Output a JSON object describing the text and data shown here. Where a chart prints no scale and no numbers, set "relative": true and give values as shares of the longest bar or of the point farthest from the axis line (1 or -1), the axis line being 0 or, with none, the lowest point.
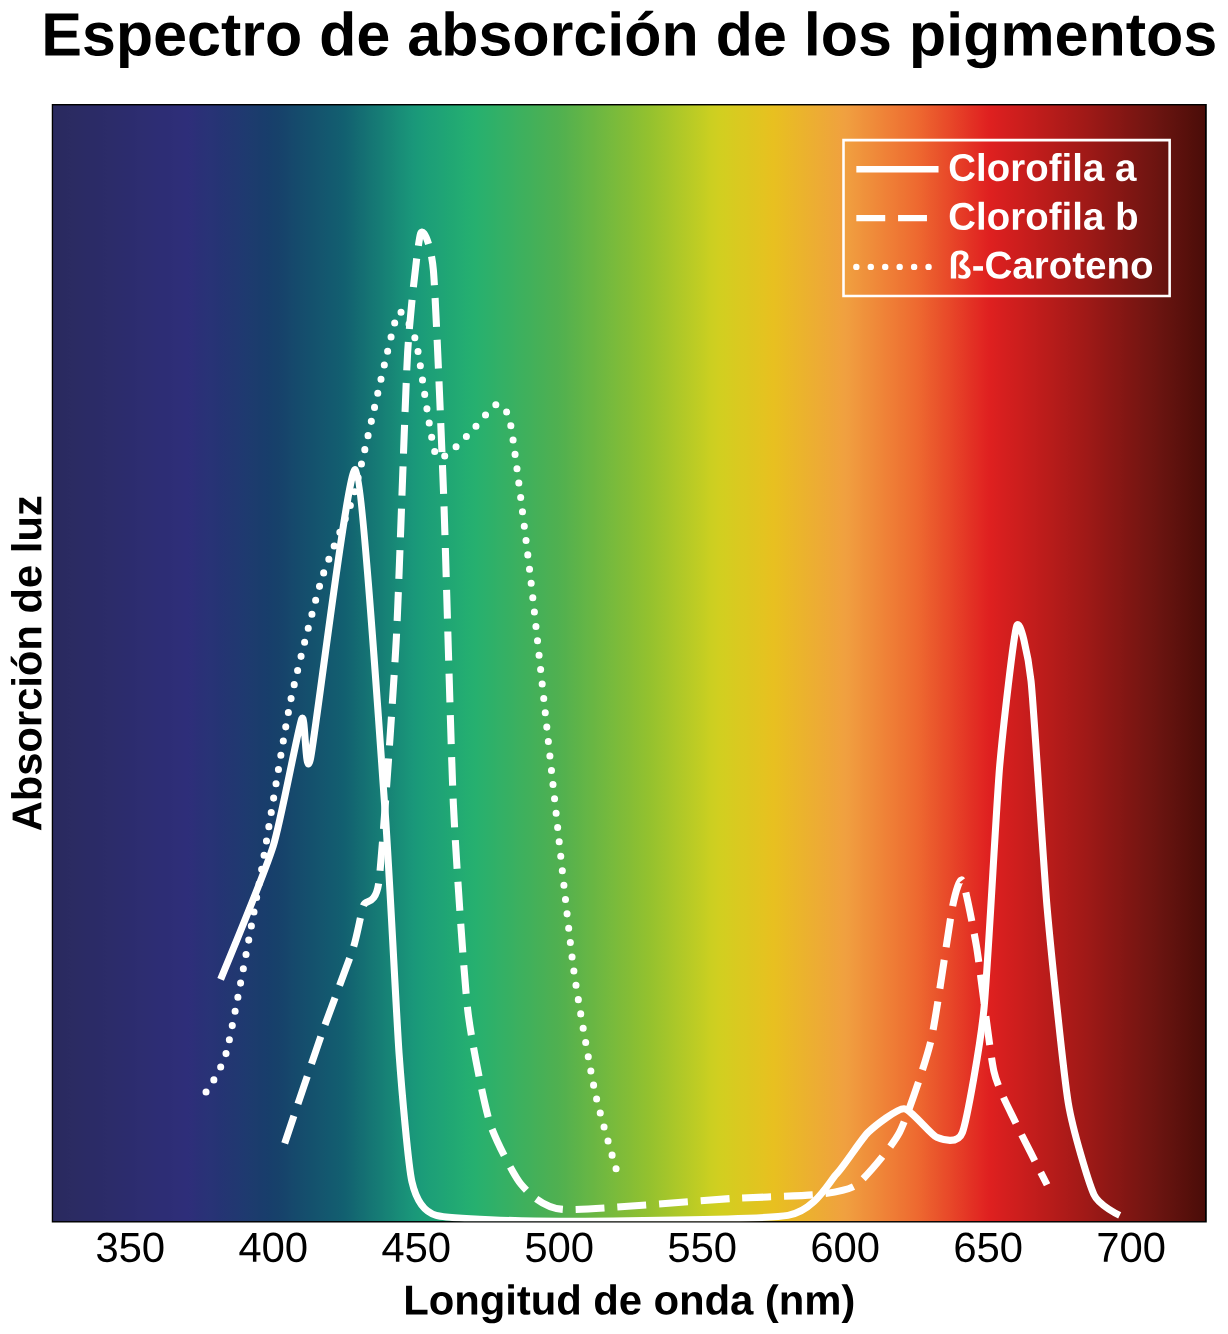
{
  "chart_data": {
    "type": "line",
    "title": "Espectro de absorción de los pigmentos",
    "xlabel": "Longitud de onda (nm)",
    "ylabel": "Absorción de luz",
    "relative": true,
    "xlim": [
      323,
      726
    ],
    "xticks": [
      350,
      400,
      450,
      500,
      550,
      600,
      650,
      700
    ],
    "legend": "top right",
    "series": [
      {
        "name": "Clorofila a",
        "color": "#ffffff",
        "line_style": "solid",
        "x": [
          381.6,
          400,
          410,
          413,
          428.7,
          439,
          444,
          448.5,
          457,
          500,
          580,
          597,
          608,
          620.6,
          632,
          641,
          648.5,
          654,
          660,
          665,
          670.6,
          678,
          687,
          696
        ],
        "values": [
          0.245,
          0.38,
          0.509,
          0.468,
          0.761,
          0.42,
          0.17,
          0.04,
          0.006,
          0.0,
          0.006,
          0.048,
          0.09,
          0.114,
          0.085,
          0.09,
          0.214,
          0.46,
          0.603,
          0.547,
          0.318,
          0.12,
          0.027,
          0.006
        ]
      },
      {
        "name": "Clorofila b",
        "color": "#ffffff",
        "line_style": "dashed",
        "x": [
          404,
          417,
          428,
          431.6,
          437,
          443,
          447,
          451.5,
          456,
          459.6,
          463,
          468,
          475.7,
          486.8,
          501.5,
          560,
          589.7,
          604,
          619,
          630,
          637.5,
          641,
          646,
          652,
          659.6,
          670.6
        ],
        "values": [
          0.079,
          0.19,
          0.277,
          0.32,
          0.345,
          0.588,
          0.88,
          1.0,
          0.963,
          0.734,
          0.422,
          0.214,
          0.1,
          0.037,
          0.012,
          0.023,
          0.027,
          0.037,
          0.09,
          0.183,
          0.318,
          0.345,
          0.277,
          0.152,
          0.1,
          0.037
        ]
      },
      {
        "name": "ß-Caroteno",
        "color": "#ffffff",
        "line_style": "dotted",
        "x": [
          376.5,
          383.8,
          394.9,
          406,
          417,
          428,
          439,
          444,
          450,
          457,
          468,
          478,
          483,
          490,
          497.8,
          505,
          512.5,
          520
        ],
        "values": [
          0.131,
          0.173,
          0.339,
          0.526,
          0.651,
          0.734,
          0.869,
          0.921,
          0.89,
          0.775,
          0.796,
          0.827,
          0.807,
          0.651,
          0.443,
          0.256,
          0.131,
          0.052
        ]
      }
    ]
  }
}
